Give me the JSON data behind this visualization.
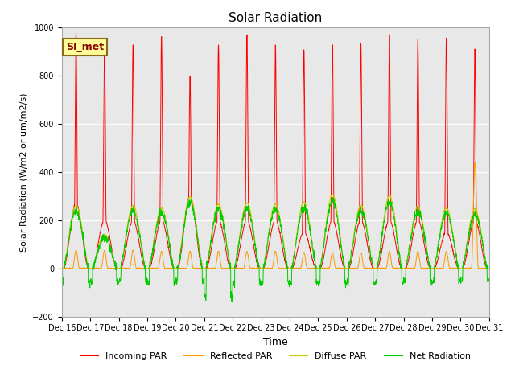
{
  "title": "Solar Radiation",
  "xlabel": "Time",
  "ylabel": "Solar Radiation (W/m2 or um/m2/s)",
  "ylim": [
    -200,
    1000
  ],
  "background_color": "#e8e8e8",
  "legend_label": "SI_met",
  "series": {
    "incoming_par": {
      "color": "#ff0000",
      "label": "Incoming PAR"
    },
    "reflected_par": {
      "color": "#ff9900",
      "label": "Reflected PAR"
    },
    "diffuse_par": {
      "color": "#cccc00",
      "label": "Diffuse PAR"
    },
    "net_radiation": {
      "color": "#00cc00",
      "label": "Net Radiation"
    }
  },
  "yticks": [
    -200,
    0,
    200,
    400,
    600,
    800,
    1000
  ],
  "n_days": 15,
  "day_peaks_incoming": [
    980,
    930,
    930,
    960,
    800,
    930,
    970,
    930,
    910,
    930,
    930,
    970,
    950,
    960,
    910
  ],
  "day_shoulder_incoming": [
    270,
    200,
    200,
    200,
    300,
    200,
    200,
    200,
    150,
    200,
    200,
    200,
    200,
    150,
    200
  ],
  "day_peaks_reflected": [
    75,
    75,
    75,
    70,
    70,
    70,
    70,
    70,
    65,
    65,
    65,
    70,
    70,
    70,
    440
  ],
  "day_peaks_diffuse": [
    260,
    140,
    260,
    250,
    295,
    265,
    270,
    265,
    275,
    305,
    260,
    300,
    255,
    250,
    245
  ],
  "night_net": [
    -60,
    -55,
    -50,
    -60,
    -55,
    -120,
    -60,
    -60,
    -60,
    -60,
    -60,
    -55,
    -55,
    -55,
    -50
  ]
}
